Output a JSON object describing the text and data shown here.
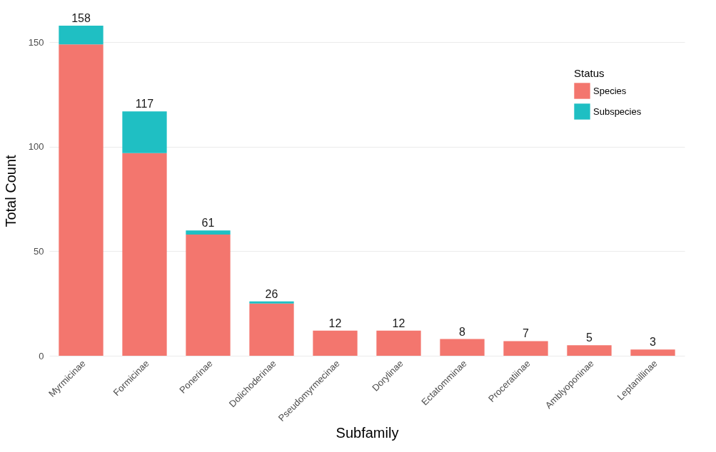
{
  "chart_data": {
    "type": "bar",
    "xlabel": "Subfamily",
    "ylabel": "Total Count",
    "legend_title": "Status",
    "categories": [
      "Myrmicinae",
      "Formicinae",
      "Ponerinae",
      "Dolichoderinae",
      "Pseudomyrmecinae",
      "Dorylinae",
      "Ectatomminae",
      "Proceratiinae",
      "Amblyoponinae",
      "Leptanillinae"
    ],
    "series": [
      {
        "name": "Species",
        "color": "#f3766e",
        "values": [
          149,
          97,
          58,
          25,
          12,
          12,
          8,
          7,
          5,
          3
        ]
      },
      {
        "name": "Subspecies",
        "color": "#1fbfc3",
        "values": [
          9,
          20,
          2,
          1,
          null,
          null,
          null,
          null,
          null,
          null
        ]
      }
    ],
    "totals": [
      "158",
      "117",
      "61",
      "26",
      "12",
      "12",
      "8",
      "7",
      "5",
      "3"
    ],
    "stacked": true,
    "ylim": [
      0,
      158
    ],
    "yticks": [
      0,
      50,
      100,
      150
    ],
    "grid": "y",
    "legend": "top right"
  }
}
